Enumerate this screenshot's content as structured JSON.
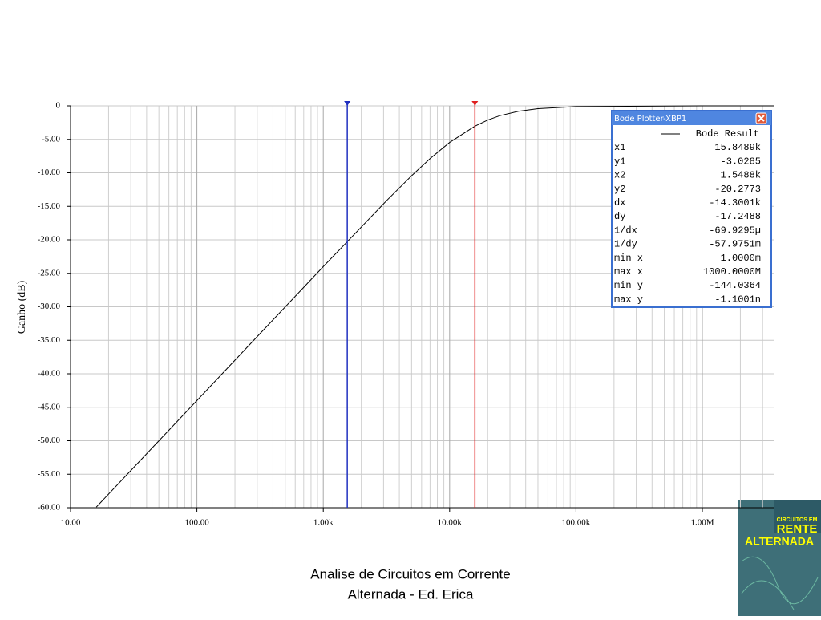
{
  "chart_data": {
    "type": "line",
    "ylabel": "Ganho (dB)",
    "xlog": true,
    "grid": true,
    "xlim": [
      10,
      3670000
    ],
    "xticks": [
      {
        "value": 10,
        "label": "10.00"
      },
      {
        "value": 100,
        "label": "100.00"
      },
      {
        "value": 1000,
        "label": "1.00k"
      },
      {
        "value": 10000,
        "label": "10.00k"
      },
      {
        "value": 100000,
        "label": "100.00k"
      },
      {
        "value": 1000000,
        "label": "1.00M"
      }
    ],
    "ylim": [
      -60,
      0
    ],
    "yticks": [
      0,
      {
        "value": -5,
        "label": "-5.00"
      },
      {
        "value": -10,
        "label": "-10.00"
      },
      {
        "value": -15,
        "label": "-15.00"
      },
      {
        "value": -20,
        "label": "-20.00"
      },
      {
        "value": -25,
        "label": "-25.00"
      },
      {
        "value": -30,
        "label": "-30.00"
      },
      {
        "value": -35,
        "label": "-35.00"
      },
      {
        "value": -40,
        "label": "-40.00"
      },
      {
        "value": -45,
        "label": "-45.00"
      },
      {
        "value": -50,
        "label": "-50.00"
      },
      {
        "value": -55,
        "label": "-55.00"
      },
      {
        "value": -60,
        "label": "-60.00"
      }
    ],
    "x": [
      16,
      31.6,
      100,
      316,
      1000,
      1548.8,
      3162,
      5000,
      7000,
      10000,
      15848.9,
      20000,
      25000,
      35000,
      50000,
      100000,
      1000000,
      3670000
    ],
    "series": [
      {
        "name": "Bode Result",
        "color": "#000000",
        "values": [
          -59.9,
          -54.0,
          -44.0,
          -34.0,
          -24.0,
          -20.28,
          -14.17,
          -10.43,
          -7.87,
          -5.46,
          -3.03,
          -2.12,
          -1.46,
          -0.81,
          -0.42,
          -0.11,
          0,
          0
        ]
      }
    ],
    "cursors": [
      {
        "x": 15848.9,
        "color": "#e02020"
      },
      {
        "x": 1548.8,
        "color": "#2030c0"
      }
    ],
    "readout": {
      "title": "Bode Plotter-XBP1",
      "rows": [
        [
          "x1",
          "15.8489k"
        ],
        [
          "y1",
          "-3.0285"
        ],
        [
          "x2",
          "1.5488k"
        ],
        [
          "y2",
          "-20.2773"
        ],
        [
          "dx",
          "-14.3001k"
        ],
        [
          "dy",
          "-17.2488"
        ],
        [
          "1/dx",
          "-69.9295µ"
        ],
        [
          "1/dy",
          "-57.9751m"
        ],
        [
          "min x",
          "1.0000m"
        ],
        [
          "max x",
          "1000.0000M"
        ],
        [
          "min y",
          "-144.0364"
        ],
        [
          "max y",
          "-1.1001n"
        ]
      ]
    }
  },
  "caption": [
    "Analise de Circuitos em Corrente",
    "Alternada - Ed. Erica"
  ],
  "cover": [
    "CIRCUITOS EM",
    "RENTE",
    "ALTERNADA"
  ]
}
